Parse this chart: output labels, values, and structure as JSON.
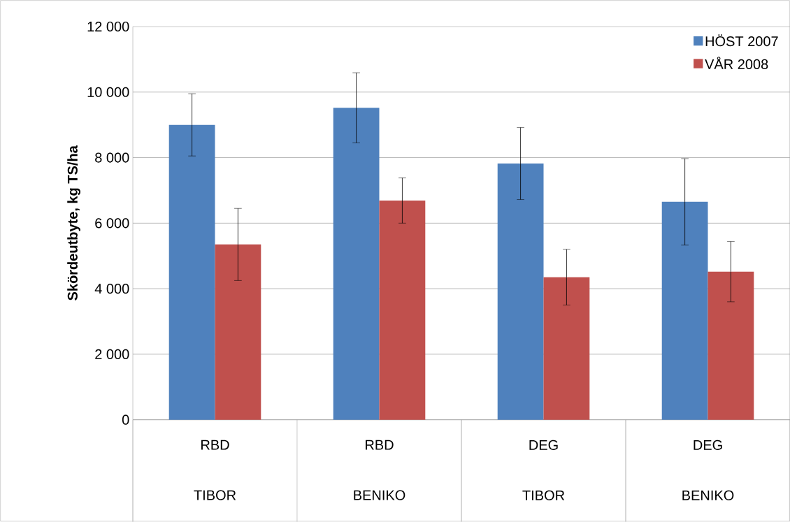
{
  "chart_data": {
    "type": "bar",
    "ylabel": "Skördeutbyte, kg TS/ha",
    "categories": [
      "RBD TIBOR",
      "RBD BENIKO",
      "DEG TIBOR",
      "DEG BENIKO"
    ],
    "series": [
      {
        "name": "HÖST 2007",
        "color": "#4f81bd",
        "values": [
          9000,
          9520,
          7820,
          6650
        ],
        "errors": [
          950,
          1070,
          1100,
          1320
        ]
      },
      {
        "name": "VÅR 2008",
        "color": "#c0504d",
        "values": [
          5350,
          6690,
          4350,
          4520
        ],
        "errors": [
          1100,
          690,
          850,
          920
        ]
      }
    ],
    "ylim": [
      0,
      12000
    ],
    "yticks": [
      0,
      {
        "value": 2000,
        "label": "2 000"
      },
      {
        "value": 4000,
        "label": "4 000"
      },
      {
        "value": 6000,
        "label": "6 000"
      },
      {
        "value": 8000,
        "label": "8 000"
      },
      {
        "value": 10000,
        "label": "10 000"
      },
      {
        "value": 12000,
        "label": "12 000"
      }
    ],
    "grid": "y",
    "legend": "top right"
  }
}
